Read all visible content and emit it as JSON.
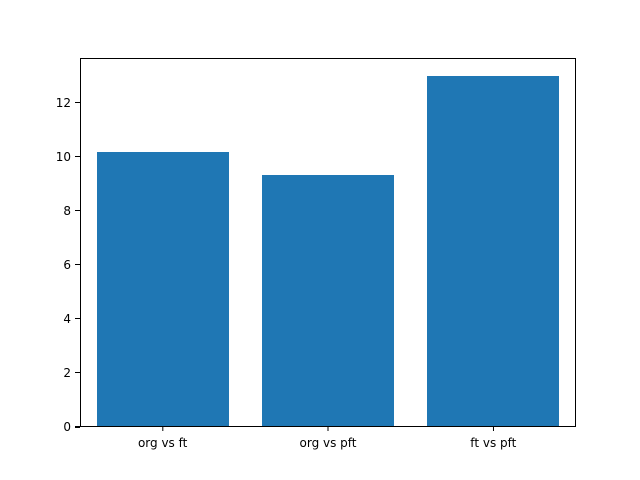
{
  "figure": {
    "background": "#ffffff"
  },
  "chart_data": {
    "type": "bar",
    "title": "",
    "xlabel": "",
    "ylabel": "",
    "categories": [
      "org vs ft",
      "org vs pft",
      "ft vs pft"
    ],
    "values": [
      10.2,
      9.35,
      13.0
    ],
    "ylim": [
      0,
      13.65
    ],
    "yticks": [
      0,
      2,
      4,
      6,
      8,
      10,
      12
    ],
    "bar_color": "#1f77b4",
    "grid": false,
    "legend": null,
    "bar_width_fraction": 0.8
  }
}
